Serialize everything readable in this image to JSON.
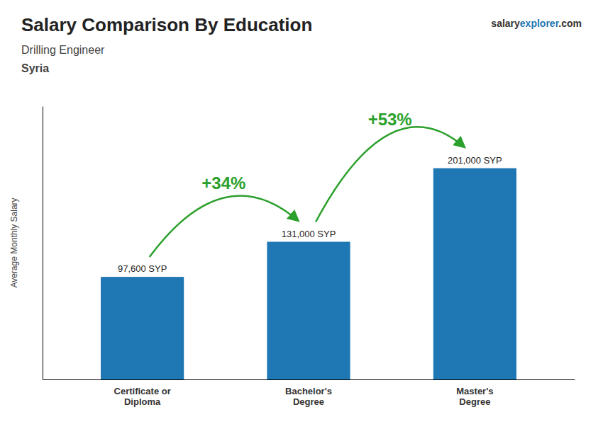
{
  "chart_data": {
    "type": "bar",
    "title": "Salary Comparison By Education",
    "subtitle": "Drilling Engineer",
    "country": "Syria",
    "brand": [
      "salary",
      "explorer",
      ".com"
    ],
    "ylabel": "Average Monthly Salary",
    "categories": [
      "Certificate or\nDiploma",
      "Bachelor's\nDegree",
      "Master's\nDegree"
    ],
    "values": [
      97600,
      131000,
      201000
    ],
    "value_labels": [
      "97,600 SYP",
      "131,000 SYP",
      "201,000 SYP"
    ],
    "data_labels": true,
    "annotations": [
      "+34%",
      "+53%"
    ],
    "ylim": [
      0,
      260000
    ],
    "yticks": [],
    "tick_labels": "x",
    "grid": false
  }
}
